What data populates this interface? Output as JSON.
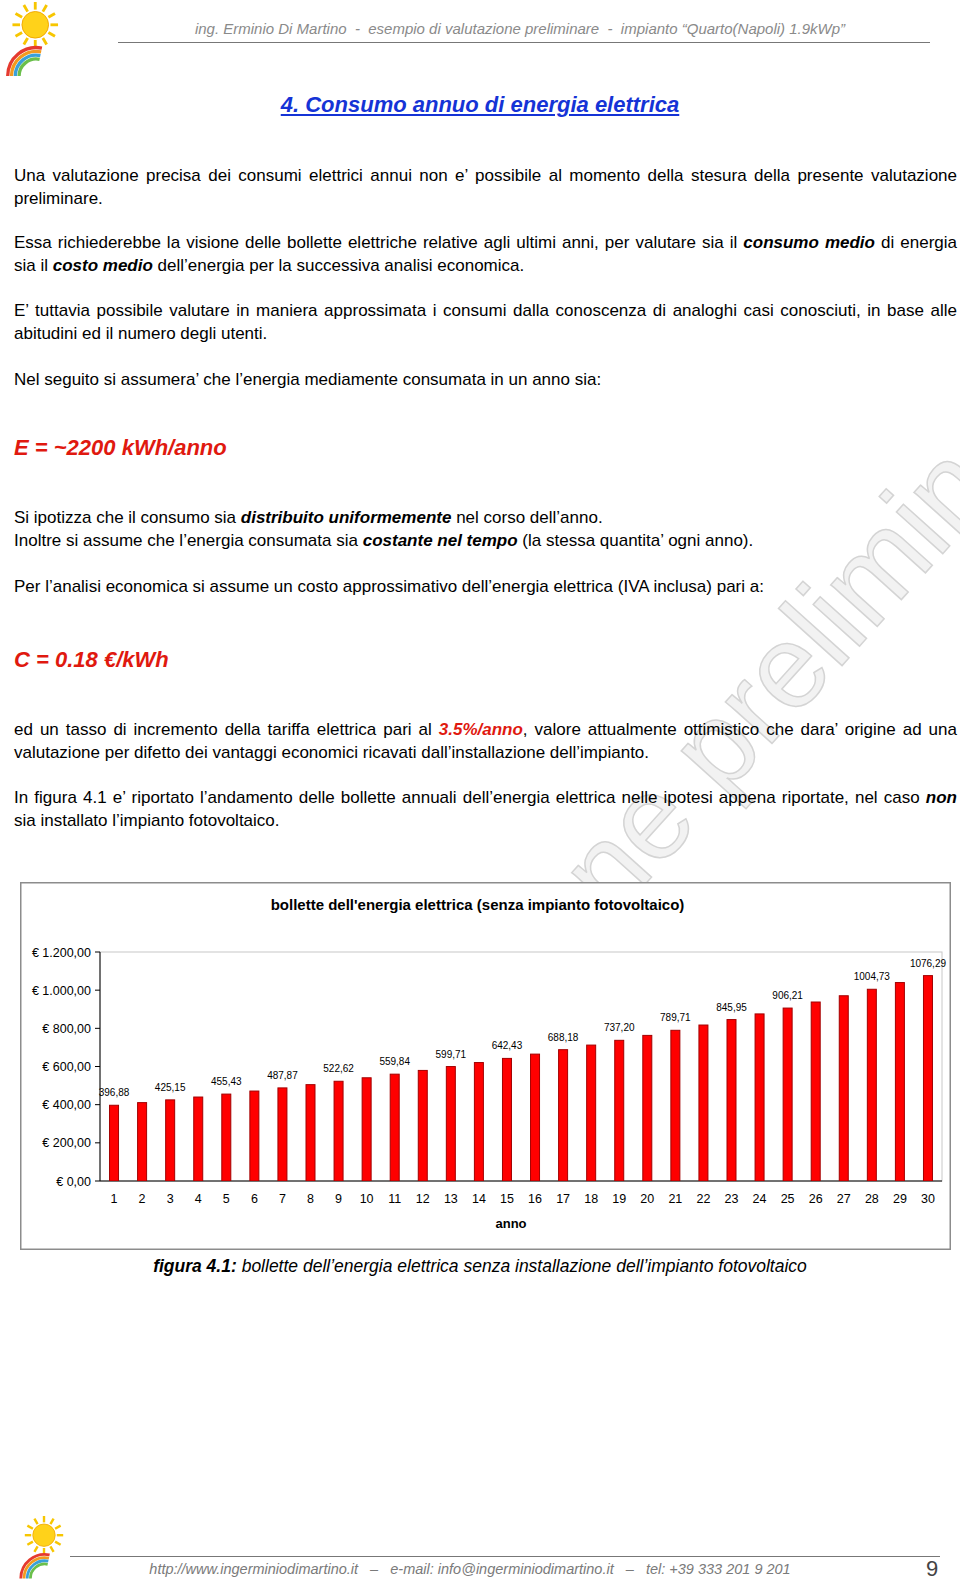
{
  "header": {
    "text": "ing. Erminio Di Martino  -  esempio di valutazione preliminare  -  impianto “Quarto(Napoli) 1.9kWp”"
  },
  "heading": "4. Consumo annuo di energia elettrica",
  "watermark": "valutazione preliminare",
  "body": [
    {
      "lines": [
        [
          {
            "text": "Una valutazione precisa dei consumi elettrici annui non e’ possibile al momento della stesura della presente valutazione preliminare."
          }
        ]
      ]
    },
    {
      "lines": [
        [
          {
            "text": "Essa richiederebbe la visione delle bollette elettriche relative agli ultimi anni, per valutare sia il "
          },
          {
            "text": "consumo medio",
            "style": "strong"
          },
          {
            "text": " di energia sia il "
          },
          {
            "text": "costo medio",
            "style": "strong"
          },
          {
            "text": " dell’energia per la successiva analisi economica."
          }
        ]
      ]
    },
    {
      "lines": [
        [
          {
            "text": "E’ tuttavia possibile valutare in maniera approssimata i consumi dalla conoscenza di analoghi casi conosciuti, in base alle abitudini ed il numero degli utenti."
          }
        ]
      ]
    },
    {
      "lines": [
        [
          {
            "text": "Nel seguito si assumera’ che l’energia mediamente consumata in un anno sia:"
          }
        ]
      ]
    },
    {
      "formula": "E = ~2200 kWh/anno"
    },
    {
      "lines": [
        [
          {
            "text": "Si ipotizza che il consumo sia "
          },
          {
            "text": "distribuito uniformemente",
            "style": "strong"
          },
          {
            "text": " nel corso dell’anno."
          }
        ],
        [
          {
            "text": "Inoltre si assume che l’energia consumata sia "
          },
          {
            "text": "costante nel tempo",
            "style": "strong"
          },
          {
            "text": " (la stessa quantita’ ogni anno)."
          }
        ]
      ]
    },
    {
      "lines": [
        [
          {
            "text": "Per l’analisi economica si assume un costo approssimativo dell’energia elettrica (IVA inclusa) pari a:"
          }
        ]
      ]
    },
    {
      "formula": "C = 0.18 €/kWh"
    },
    {
      "lines": [
        [
          {
            "text": "ed un tasso di incremento della tariffa elettrica pari al "
          },
          {
            "text": "3.5%/anno",
            "style": "highlight"
          },
          {
            "text": ", valore attualmente ottimistico che dara’ origine ad una valutazione per difetto dei vantaggi economici ricavati dall’installazione dell’impianto."
          }
        ]
      ]
    },
    {
      "lines": [
        [
          {
            "text": "In figura 4.1 e’ riportato l’andamento delle bollette annuali dell’energia elettrica nelle ipotesi appena riportate, nel caso "
          },
          {
            "text": "non",
            "style": "strong"
          },
          {
            "text": " sia installato l’impianto fotovoltaico."
          }
        ]
      ]
    }
  ],
  "chart_data": {
    "type": "bar",
    "title": "bollette dell'energia elettrica (senza impianto fotovoltaico)",
    "x_label": "anno",
    "categories": [
      "1",
      "2",
      "3",
      "4",
      "5",
      "6",
      "7",
      "8",
      "9",
      "10",
      "11",
      "12",
      "13",
      "14",
      "15",
      "16",
      "17",
      "18",
      "19",
      "20",
      "21",
      "22",
      "23",
      "24",
      "25",
      "26",
      "27",
      "28",
      "29",
      "30"
    ],
    "values": [
      396.88,
      410.77,
      425.15,
      440.03,
      455.43,
      471.37,
      487.87,
      504.94,
      522.62,
      540.91,
      559.84,
      579.43,
      599.71,
      620.7,
      642.43,
      664.91,
      688.18,
      712.27,
      737.2,
      763.0,
      789.71,
      817.35,
      845.95,
      875.56,
      906.21,
      937.93,
      970.75,
      1004.73,
      1039.89,
      1076.29
    ],
    "value_labels": [
      "396,88",
      null,
      "425,15",
      null,
      "455,43",
      null,
      "487,87",
      null,
      "522,62",
      null,
      "559,84",
      null,
      "599,71",
      null,
      "642,43",
      null,
      "688,18",
      null,
      "737,20",
      null,
      "789,71",
      null,
      "845,95",
      null,
      "906,21",
      null,
      null,
      "1004,73",
      null,
      "1076,29"
    ],
    "color": "#ff0000",
    "ylim": [
      0,
      1200
    ],
    "yticks": [
      {
        "value": 0,
        "label": "€ 0,00"
      },
      {
        "value": 200,
        "label": "€ 200,00"
      },
      {
        "value": 400,
        "label": "€ 400,00"
      },
      {
        "value": 600,
        "label": "€ 600,00"
      },
      {
        "value": 800,
        "label": "€ 800,00"
      },
      {
        "value": 1000,
        "label": "€ 1.000,00"
      },
      {
        "value": 1200,
        "label": "€ 1.200,00"
      }
    ],
    "grid": false,
    "data_labels": true
  },
  "caption": [
    {
      "text": "figura 4.1:",
      "style": "strong"
    },
    {
      "text": " bollette dell’energia elettrica senza installazione dell’impianto fotovoltaico"
    }
  ],
  "footer": {
    "text": "http://www.ingerminiodimartino.it   –   e-mail: info@ingerminiodimartino.it   –   tel: +39 333 201 9 201",
    "page": 9
  }
}
